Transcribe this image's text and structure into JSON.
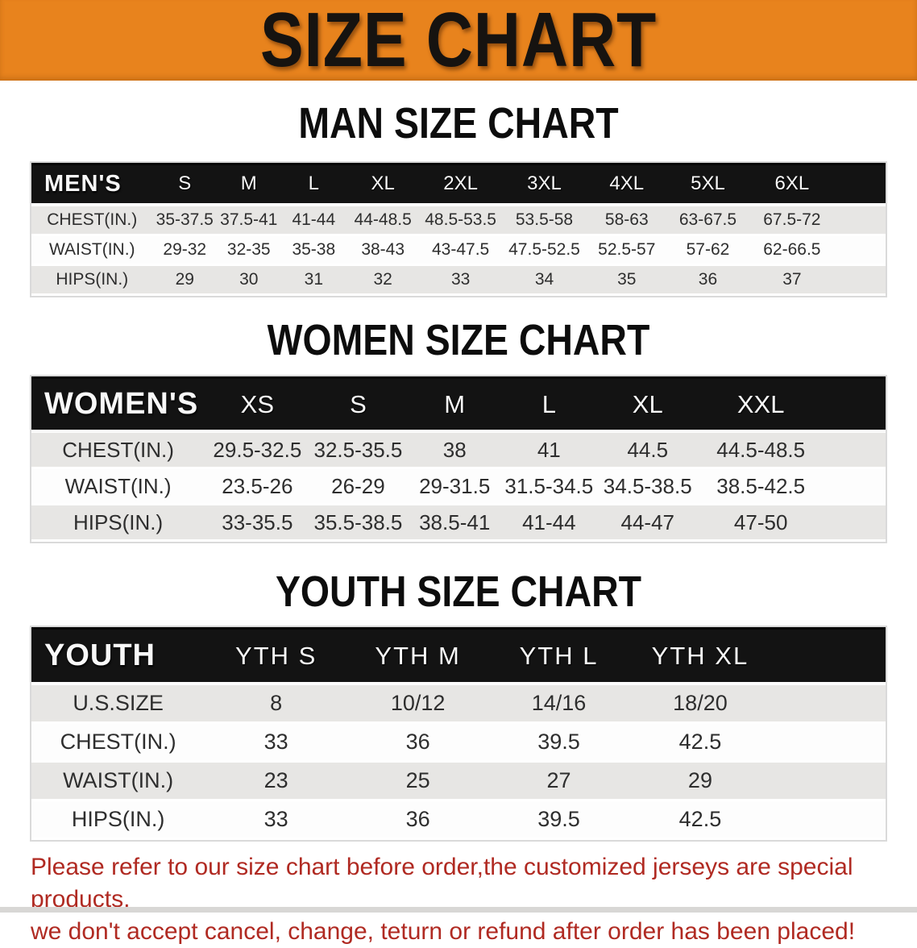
{
  "banner": {
    "title": "SIZE CHART"
  },
  "sections": [
    {
      "heading": "MAN SIZE CHART",
      "header_label": "MEN'S",
      "columns": [
        "S",
        "M",
        "L",
        "XL",
        "2XL",
        "3XL",
        "4XL",
        "5XL",
        "6XL"
      ],
      "rows": [
        {
          "label": "CHEST(IN.)",
          "values": [
            "35-37.5",
            "37.5-41",
            "41-44",
            "44-48.5",
            "48.5-53.5",
            "53.5-58",
            "58-63",
            "63-67.5",
            "67.5-72"
          ]
        },
        {
          "label": "WAIST(IN.)",
          "values": [
            "29-32",
            "32-35",
            "35-38",
            "38-43",
            "43-47.5",
            "47.5-52.5",
            "52.5-57",
            "57-62",
            "62-66.5"
          ]
        },
        {
          "label": "HIPS(IN.)",
          "values": [
            "29",
            "30",
            "31",
            "32",
            "33",
            "34",
            "35",
            "36",
            "37"
          ]
        }
      ]
    },
    {
      "heading": "WOMEN SIZE CHART",
      "header_label": "WOMEN'S",
      "columns": [
        "XS",
        "S",
        "M",
        "L",
        "XL",
        "XXL"
      ],
      "rows": [
        {
          "label": "CHEST(IN.)",
          "values": [
            "29.5-32.5",
            "32.5-35.5",
            "38",
            "41",
            "44.5",
            "44.5-48.5"
          ]
        },
        {
          "label": "WAIST(IN.)",
          "values": [
            "23.5-26",
            "26-29",
            "29-31.5",
            "31.5-34.5",
            "34.5-38.5",
            "38.5-42.5"
          ]
        },
        {
          "label": "HIPS(IN.)",
          "values": [
            "33-35.5",
            "35.5-38.5",
            "38.5-41",
            "41-44",
            "44-47",
            "47-50"
          ]
        }
      ]
    },
    {
      "heading": "YOUTH SIZE CHART",
      "header_label": "YOUTH",
      "columns": [
        "YTH S",
        "YTH M",
        "YTH L",
        "YTH XL"
      ],
      "rows": [
        {
          "label": "U.S.SIZE",
          "values": [
            "8",
            "10/12",
            "14/16",
            "18/20"
          ]
        },
        {
          "label": "CHEST(IN.)",
          "values": [
            "33",
            "36",
            "39.5",
            "42.5"
          ]
        },
        {
          "label": "WAIST(IN.)",
          "values": [
            "23",
            "25",
            "27",
            "29"
          ]
        },
        {
          "label": "HIPS(IN.)",
          "values": [
            "33",
            "36",
            "39.5",
            "42.5"
          ]
        }
      ]
    }
  ],
  "disclaimer": {
    "line1": "Please refer to our size chart before order,the customized jerseys are special products,",
    "line2": "we don't accept cancel, change, teturn or refund after order has been placed!"
  },
  "colors": {
    "banner_orange": "#e8831d",
    "banner_text": "#161310",
    "table_header_black": "#131313",
    "row_gray": "#e7e6e4",
    "row_white": "#fdfdfd",
    "disclaimer_red": "#b02a22"
  }
}
